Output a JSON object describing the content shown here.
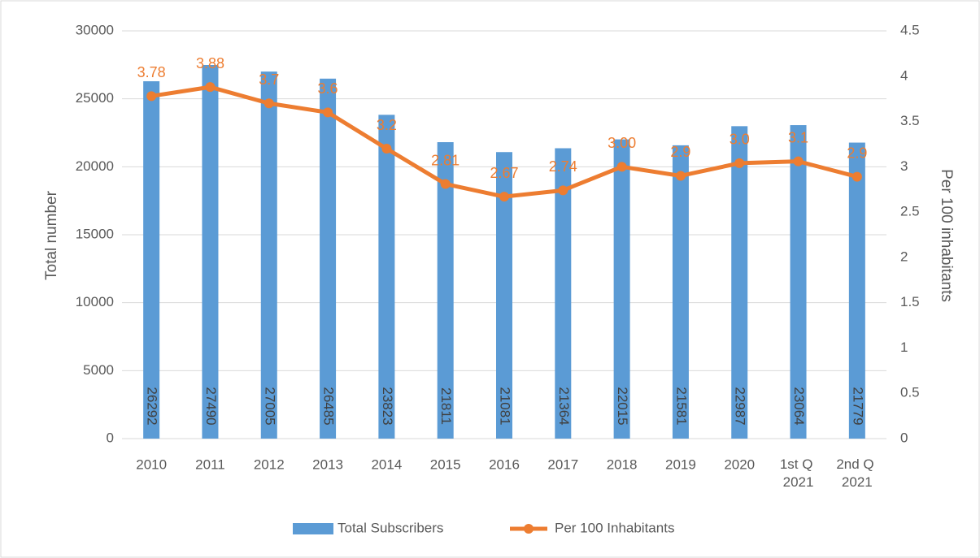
{
  "chart_data": {
    "type": "bar",
    "categories": [
      "2010",
      "2011",
      "2012",
      "2013",
      "2014",
      "2015",
      "2016",
      "2017",
      "2018",
      "2019",
      "2020",
      "1st Q 2021",
      "2nd Q 2021"
    ],
    "series": [
      {
        "name": "Total Subscribers",
        "color": "#5b9bd5",
        "type": "bar",
        "values": [
          26292,
          27490,
          27005,
          26485,
          23823,
          21811,
          21081,
          21364,
          22015,
          21581,
          22987,
          23064,
          21779
        ]
      },
      {
        "name": "Per 100 Inhabitants",
        "color": "#ed7d31",
        "type": "line",
        "axis": "y2",
        "values": [
          3.78,
          3.88,
          3.7,
          3.6,
          3.2,
          2.81,
          2.67,
          2.74,
          3.0,
          2.9,
          3.04,
          3.06,
          2.89
        ],
        "value_labels": [
          "3.78",
          "3.88",
          "3.7",
          "3.6",
          "3.2",
          "2.81",
          "2.67",
          "2.74",
          "3.00",
          "2.9",
          "3.0",
          "3.1",
          "2.9"
        ]
      }
    ],
    "y_label": "Total number",
    "y2_label": "Per 100 inhabitants",
    "ylim": [
      0,
      30000
    ],
    "yticks": [
      0,
      5000,
      10000,
      15000,
      20000,
      25000,
      30000
    ],
    "y2lim": [
      0,
      4.5
    ],
    "y2ticks": [
      0,
      0.5,
      1,
      1.5,
      2,
      2.5,
      3,
      3.5,
      4,
      4.5
    ],
    "grid": true,
    "legend": "bottom"
  }
}
